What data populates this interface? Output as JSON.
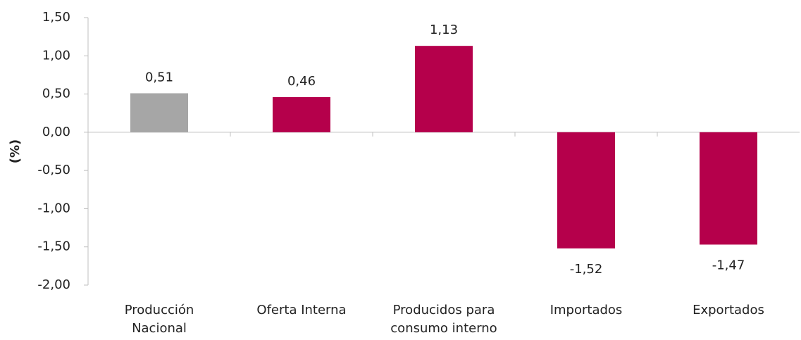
{
  "chart_data": {
    "type": "bar",
    "y_label": "(%)",
    "categories": [
      "Producción Nacional",
      "Oferta Interna",
      "Producidos para consumo interno",
      "Importados",
      "Exportados"
    ],
    "values": [
      0.51,
      0.46,
      1.13,
      -1.52,
      -1.47
    ],
    "value_labels": [
      "0,51",
      "0,46",
      "1,13",
      "-1,52",
      "-1,47"
    ],
    "colors": [
      "#a6a6a6",
      "#b5004b",
      "#b5004b",
      "#b5004b",
      "#b5004b"
    ],
    "ylim": [
      -2,
      1.5
    ],
    "yticks": [
      {
        "value": -2,
        "label": "-2,00"
      },
      {
        "value": -1.5,
        "label": "-1,50"
      },
      {
        "value": -1,
        "label": "-1,00"
      },
      {
        "value": -0.5,
        "label": "-0,50"
      },
      {
        "value": 0,
        "label": "0,00"
      },
      {
        "value": 0.5,
        "label": "0,50"
      },
      {
        "value": 1,
        "label": "1,00"
      },
      {
        "value": 1.5,
        "label": "1,50"
      }
    ]
  }
}
